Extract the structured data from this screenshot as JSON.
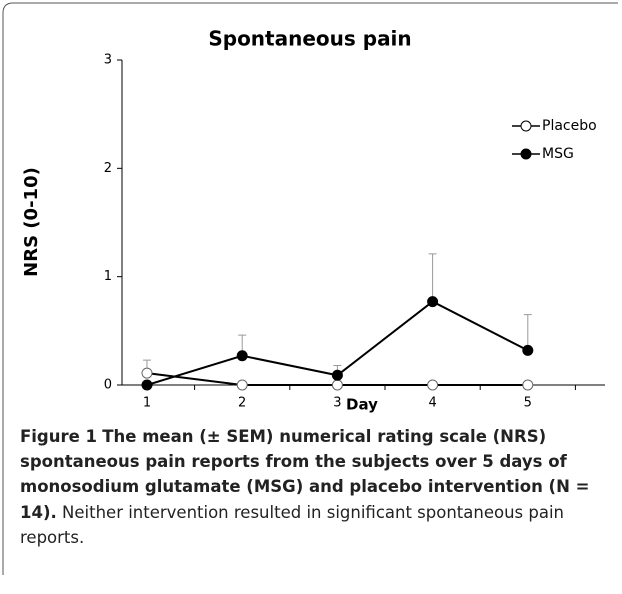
{
  "chart_data": {
    "type": "line",
    "title": "Spontaneous pain",
    "x_label": "Day",
    "y_label": "NRS (0-10)",
    "categories": [
      "1",
      "2",
      "3",
      "4",
      "5"
    ],
    "ylim": [
      0,
      3
    ],
    "yticks": [
      0,
      1,
      2,
      3
    ],
    "legend": "top-right",
    "series": [
      {
        "name": "Placebo",
        "color": "#000000",
        "marker_fill": "#ffffff",
        "values": [
          0.11,
          0,
          0,
          0,
          0
        ],
        "errors": [
          0.12,
          null,
          null,
          null,
          null
        ]
      },
      {
        "name": "MSG",
        "color": "#000000",
        "marker_fill": "#000000",
        "values": [
          0,
          0.27,
          0.09,
          0.77,
          0.32
        ],
        "errors": [
          null,
          0.19,
          0.09,
          0.44,
          0.33
        ]
      }
    ]
  },
  "caption": {
    "label": "Figure 1",
    "title": "The mean (± SEM) numerical rating scale (NRS) spontaneous pain reports from the subjects over 5 days of monosodium glutamate (MSG) and placebo intervention (N = 14).",
    "text": "Neither intervention resulted in significant spontaneous pain reports."
  }
}
